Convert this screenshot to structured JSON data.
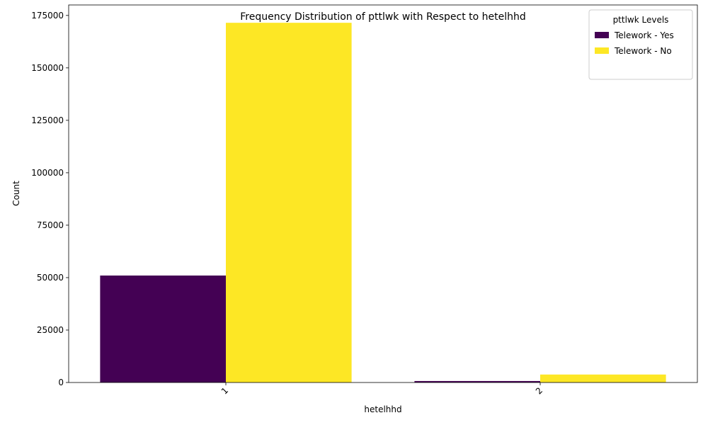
{
  "chart_data": {
    "type": "bar",
    "title": "Frequency Distribution of pttlwk with Respect to hetelhhd",
    "xlabel": "hetelhhd",
    "ylabel": "Count",
    "categories": [
      "1",
      "2"
    ],
    "series": [
      {
        "name": "Telework - Yes",
        "color": "#440154",
        "values": [
          51000,
          700
        ]
      },
      {
        "name": "Telework - No",
        "color": "#fde725",
        "values": [
          171500,
          3800
        ]
      }
    ],
    "ylim": [
      0,
      180000
    ],
    "yticks": [
      0,
      25000,
      50000,
      75000,
      100000,
      125000,
      150000,
      175000
    ],
    "legend": {
      "title": "pttlwk Levels",
      "placement": "top-right"
    },
    "grid": false
  }
}
